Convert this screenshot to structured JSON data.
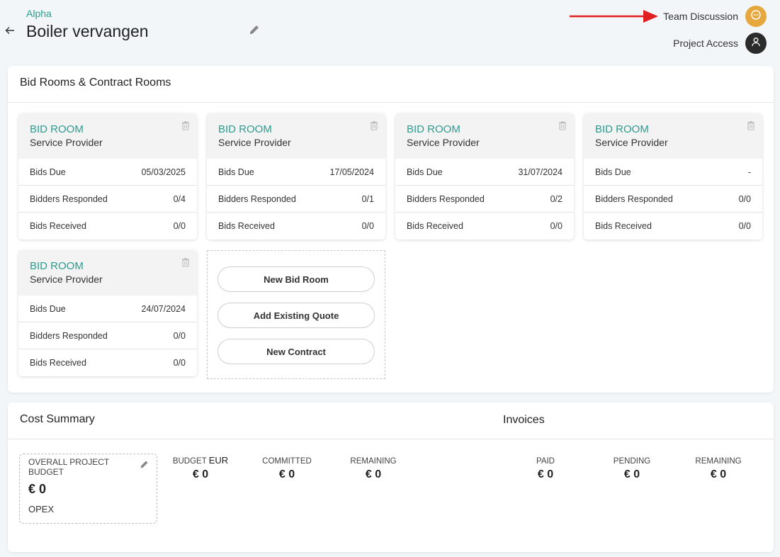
{
  "header": {
    "project_parent": "Alpha",
    "project_title": "Boiler vervangen",
    "team_discussion": "Team Discussion",
    "project_access": "Project Access"
  },
  "rooms": {
    "title": "Bid Rooms & Contract Rooms",
    "cards": [
      {
        "type": "BID ROOM",
        "role": "Service Provider",
        "rows": [
          {
            "label": "Bids Due",
            "value": "05/03/2025"
          },
          {
            "label": "Bidders Responded",
            "value": "0/4"
          },
          {
            "label": "Bids Received",
            "value": "0/0"
          }
        ]
      },
      {
        "type": "BID ROOM",
        "role": "Service Provider",
        "rows": [
          {
            "label": "Bids Due",
            "value": "17/05/2024"
          },
          {
            "label": "Bidders Responded",
            "value": "0/1"
          },
          {
            "label": "Bids Received",
            "value": "0/0"
          }
        ]
      },
      {
        "type": "BID ROOM",
        "role": "Service Provider",
        "rows": [
          {
            "label": "Bids Due",
            "value": "31/07/2024"
          },
          {
            "label": "Bidders Responded",
            "value": "0/2"
          },
          {
            "label": "Bids Received",
            "value": "0/0"
          }
        ]
      },
      {
        "type": "BID ROOM",
        "role": "Service Provider",
        "rows": [
          {
            "label": "Bids Due",
            "value": "-"
          },
          {
            "label": "Bidders Responded",
            "value": "0/0"
          },
          {
            "label": "Bids Received",
            "value": "0/0"
          }
        ]
      },
      {
        "type": "BID ROOM",
        "role": "Service Provider",
        "rows": [
          {
            "label": "Bids Due",
            "value": "24/07/2024"
          },
          {
            "label": "Bidders Responded",
            "value": "0/0"
          },
          {
            "label": "Bids Received",
            "value": "0/0"
          }
        ]
      }
    ],
    "actions": {
      "new_bid_room": "New Bid Room",
      "add_existing_quote": "Add Existing Quote",
      "new_contract": "New Contract"
    }
  },
  "cost": {
    "title": "Cost Summary",
    "invoices_title": "Invoices",
    "budget_box": {
      "label": "OVERALL PROJECT BUDGET",
      "value": "€ 0",
      "type": "OPEX"
    },
    "stats": [
      {
        "label": "BUDGET",
        "currency": "EUR",
        "value": "€ 0"
      },
      {
        "label": "COMMITTED",
        "currency": "",
        "value": "€ 0"
      },
      {
        "label": "REMAINING",
        "currency": "",
        "value": "€ 0"
      },
      {
        "label": "PAID",
        "currency": "",
        "value": "€ 0"
      },
      {
        "label": "PENDING",
        "currency": "",
        "value": "€ 0"
      },
      {
        "label": "REMAINING",
        "currency": "",
        "value": "€ 0"
      }
    ]
  },
  "colors": {
    "accent": "#2a9d8f",
    "team_button": "#e7a73f",
    "access_button": "#2b2b2b",
    "annotation_arrow": "#e02020"
  },
  "icons": [
    "back-arrow-icon",
    "edit-pencil-icon",
    "chat-bubble-icon",
    "user-icon",
    "trash-icon"
  ]
}
